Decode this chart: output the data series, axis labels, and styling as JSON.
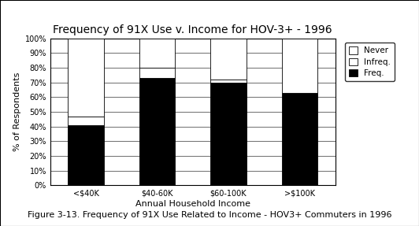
{
  "title": "Frequency of 91X Use v. Income for HOV-3+ - 1996",
  "xlabel": "Annual Household Income",
  "ylabel": "% of Respondents",
  "categories": [
    "<$40K",
    "$40-60K",
    "$60-100K",
    ">$100K"
  ],
  "freq": [
    41,
    73,
    70,
    63
  ],
  "infreq": [
    6,
    7,
    2,
    0
  ],
  "never": [
    53,
    20,
    28,
    37
  ],
  "ylim": [
    0,
    100
  ],
  "yticks": [
    0,
    10,
    20,
    30,
    40,
    50,
    60,
    70,
    80,
    90,
    100
  ],
  "ytick_labels": [
    "0%",
    "10%",
    "20%",
    "30%",
    "40%",
    "50%",
    "60%",
    "70%",
    "80%",
    "90%",
    "100%"
  ],
  "color_freq": "#000000",
  "color_infreq": "#ffffff",
  "color_never": "#ffffff",
  "legend_labels": [
    "Never",
    "Infreq.",
    "Freq."
  ],
  "caption": "Figure 3-13. Frequency of 91X Use Related to Income - HOV3+ Commuters in 1996",
  "title_fontsize": 10,
  "axis_label_fontsize": 8,
  "tick_fontsize": 7,
  "legend_fontsize": 7.5,
  "caption_fontsize": 8
}
